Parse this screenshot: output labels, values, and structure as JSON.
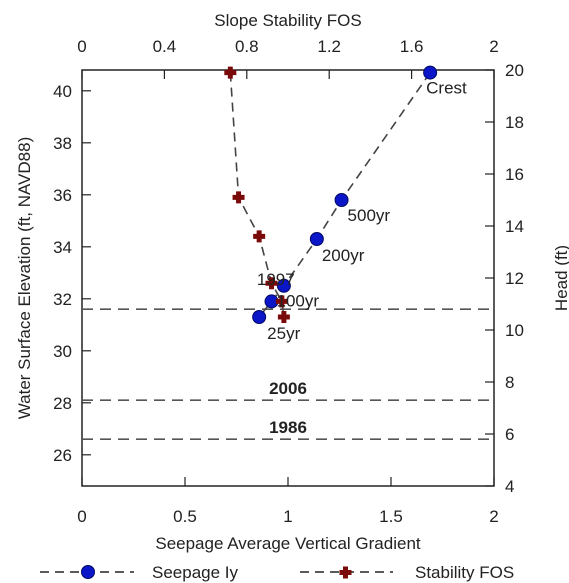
{
  "chart_data": {
    "type": "scatter",
    "axes": {
      "bottom": {
        "label": "Seepage Average Vertical Gradient",
        "range": [
          0,
          2
        ],
        "ticks": [
          "0",
          "0.5",
          "1",
          "1.5",
          "2"
        ],
        "tick_values": [
          0,
          0.5,
          1,
          1.5,
          2
        ]
      },
      "top": {
        "label": "Slope Stability FOS",
        "range": [
          0,
          2
        ],
        "ticks": [
          "0",
          "0.4",
          "0.8",
          "1.2",
          "1.6",
          "2"
        ],
        "tick_values": [
          0,
          0.4,
          0.8,
          1.2,
          1.6,
          2
        ]
      },
      "left": {
        "label": "Water Surface Elevation (ft, NAVD88)",
        "range": [
          24.8,
          40.8
        ],
        "ticks": [
          "26",
          "28",
          "30",
          "32",
          "34",
          "36",
          "38",
          "40"
        ],
        "tick_values": [
          26,
          28,
          30,
          32,
          34,
          36,
          38,
          40
        ]
      },
      "right": {
        "label": "Head (ft)",
        "range": [
          4,
          20
        ],
        "ticks": [
          "4",
          "6",
          "8",
          "10",
          "12",
          "14",
          "16",
          "18",
          "20"
        ],
        "tick_values": [
          4,
          6,
          8,
          10,
          12,
          14,
          16,
          18,
          20
        ]
      }
    },
    "reference_lines": [
      {
        "y": 31.6,
        "label": ""
      },
      {
        "y": 28.1,
        "label": "2006",
        "label_x": 1.0
      },
      {
        "y": 26.6,
        "label": "1986",
        "label_x": 1.0
      }
    ],
    "series": [
      {
        "name": "Seepage Iy",
        "axis": "bottom",
        "color": "#0a16c8",
        "marker": "circle",
        "points": [
          {
            "x": 1.69,
            "y": 40.7,
            "label": "Crest"
          },
          {
            "x": 1.26,
            "y": 35.8,
            "label": "500yr"
          },
          {
            "x": 1.14,
            "y": 34.3,
            "label": "200yr"
          },
          {
            "x": 0.98,
            "y": 32.5,
            "label": "1997"
          },
          {
            "x": 0.92,
            "y": 31.9,
            "label": "100yr"
          },
          {
            "x": 0.86,
            "y": 31.3,
            "label": "25yr"
          }
        ]
      },
      {
        "name": "Stability FOS",
        "axis": "top",
        "color": "#7a0a0a",
        "marker": "cross",
        "points": [
          {
            "x": 0.72,
            "y": 40.7
          },
          {
            "x": 0.76,
            "y": 35.9
          },
          {
            "x": 0.86,
            "y": 34.4
          },
          {
            "x": 0.92,
            "y": 32.6
          },
          {
            "x": 0.97,
            "y": 31.9
          },
          {
            "x": 0.98,
            "y": 31.3
          }
        ]
      }
    ],
    "legend": {
      "placement": "bottom",
      "entries": [
        "Seepage Iy",
        "Stability FOS"
      ]
    },
    "grid": false
  }
}
